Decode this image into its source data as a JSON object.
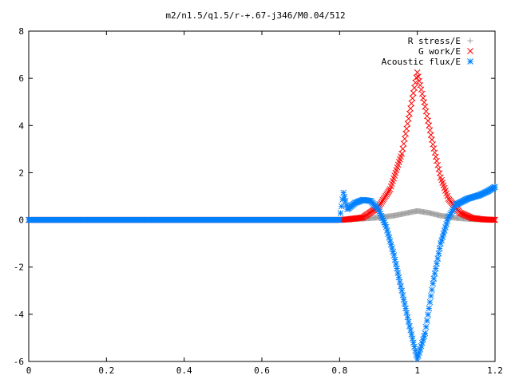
{
  "chart_data": {
    "type": "scatter",
    "title": "m2/n1.5/q1.5/r-+.67-j346/M0.04/512",
    "xlabel": "",
    "ylabel": "",
    "xlim": [
      0,
      1.2
    ],
    "ylim": [
      -6,
      8
    ],
    "x_ticks": [
      "0",
      "0.2",
      "0.4",
      "0.6",
      "0.8",
      "1",
      "1.2"
    ],
    "y_ticks": [
      "-6",
      "-4",
      "-2",
      "0",
      "2",
      "4",
      "6",
      "8"
    ],
    "grid": false,
    "legend_position": "top-right",
    "series": [
      {
        "name": "R stress/E",
        "marker": "+",
        "color": "#a0a0a0",
        "points": [
          [
            0.0,
            0
          ],
          [
            0.1,
            0
          ],
          [
            0.2,
            0
          ],
          [
            0.3,
            0
          ],
          [
            0.4,
            0
          ],
          [
            0.5,
            0
          ],
          [
            0.6,
            0
          ],
          [
            0.7,
            0
          ],
          [
            0.8,
            0
          ],
          [
            0.82,
            0.02
          ],
          [
            0.86,
            0.05
          ],
          [
            0.9,
            0.1
          ],
          [
            0.94,
            0.18
          ],
          [
            0.97,
            0.28
          ],
          [
            1.0,
            0.38
          ],
          [
            1.03,
            0.3
          ],
          [
            1.06,
            0.18
          ],
          [
            1.1,
            0.08
          ],
          [
            1.14,
            0.03
          ],
          [
            1.18,
            0.01
          ],
          [
            1.2,
            0
          ]
        ]
      },
      {
        "name": "G work/E",
        "marker": "x",
        "color": "#ff0000",
        "points": [
          [
            0.0,
            0
          ],
          [
            0.1,
            0
          ],
          [
            0.2,
            0
          ],
          [
            0.3,
            0
          ],
          [
            0.4,
            0
          ],
          [
            0.5,
            0
          ],
          [
            0.6,
            0
          ],
          [
            0.7,
            0
          ],
          [
            0.8,
            0
          ],
          [
            0.82,
            0.02
          ],
          [
            0.86,
            0.1
          ],
          [
            0.9,
            0.55
          ],
          [
            0.93,
            1.3
          ],
          [
            0.96,
            2.8
          ],
          [
            0.98,
            4.5
          ],
          [
            1.0,
            6.25
          ],
          [
            1.02,
            4.8
          ],
          [
            1.04,
            3.2
          ],
          [
            1.06,
            1.8
          ],
          [
            1.08,
            0.9
          ],
          [
            1.11,
            0.3
          ],
          [
            1.14,
            0.08
          ],
          [
            1.17,
            0.02
          ],
          [
            1.2,
            0
          ]
        ]
      },
      {
        "name": "Acoustic flux/E",
        "marker": "*",
        "color": "#0080ff",
        "points": [
          [
            0.0,
            0
          ],
          [
            0.1,
            0
          ],
          [
            0.2,
            0
          ],
          [
            0.3,
            0
          ],
          [
            0.4,
            0
          ],
          [
            0.5,
            0
          ],
          [
            0.6,
            0
          ],
          [
            0.7,
            0
          ],
          [
            0.8,
            0
          ],
          [
            0.81,
            1.15
          ],
          [
            0.82,
            0.45
          ],
          [
            0.84,
            0.72
          ],
          [
            0.86,
            0.85
          ],
          [
            0.88,
            0.8
          ],
          [
            0.9,
            0.45
          ],
          [
            0.92,
            -0.3
          ],
          [
            0.94,
            -1.5
          ],
          [
            0.96,
            -3.0
          ],
          [
            0.98,
            -4.5
          ],
          [
            1.0,
            -5.9
          ],
          [
            1.02,
            -4.8
          ],
          [
            1.04,
            -2.7
          ],
          [
            1.06,
            -1.0
          ],
          [
            1.08,
            0.1
          ],
          [
            1.1,
            0.65
          ],
          [
            1.13,
            0.9
          ],
          [
            1.16,
            1.05
          ],
          [
            1.18,
            1.2
          ],
          [
            1.2,
            1.4
          ]
        ]
      }
    ]
  }
}
